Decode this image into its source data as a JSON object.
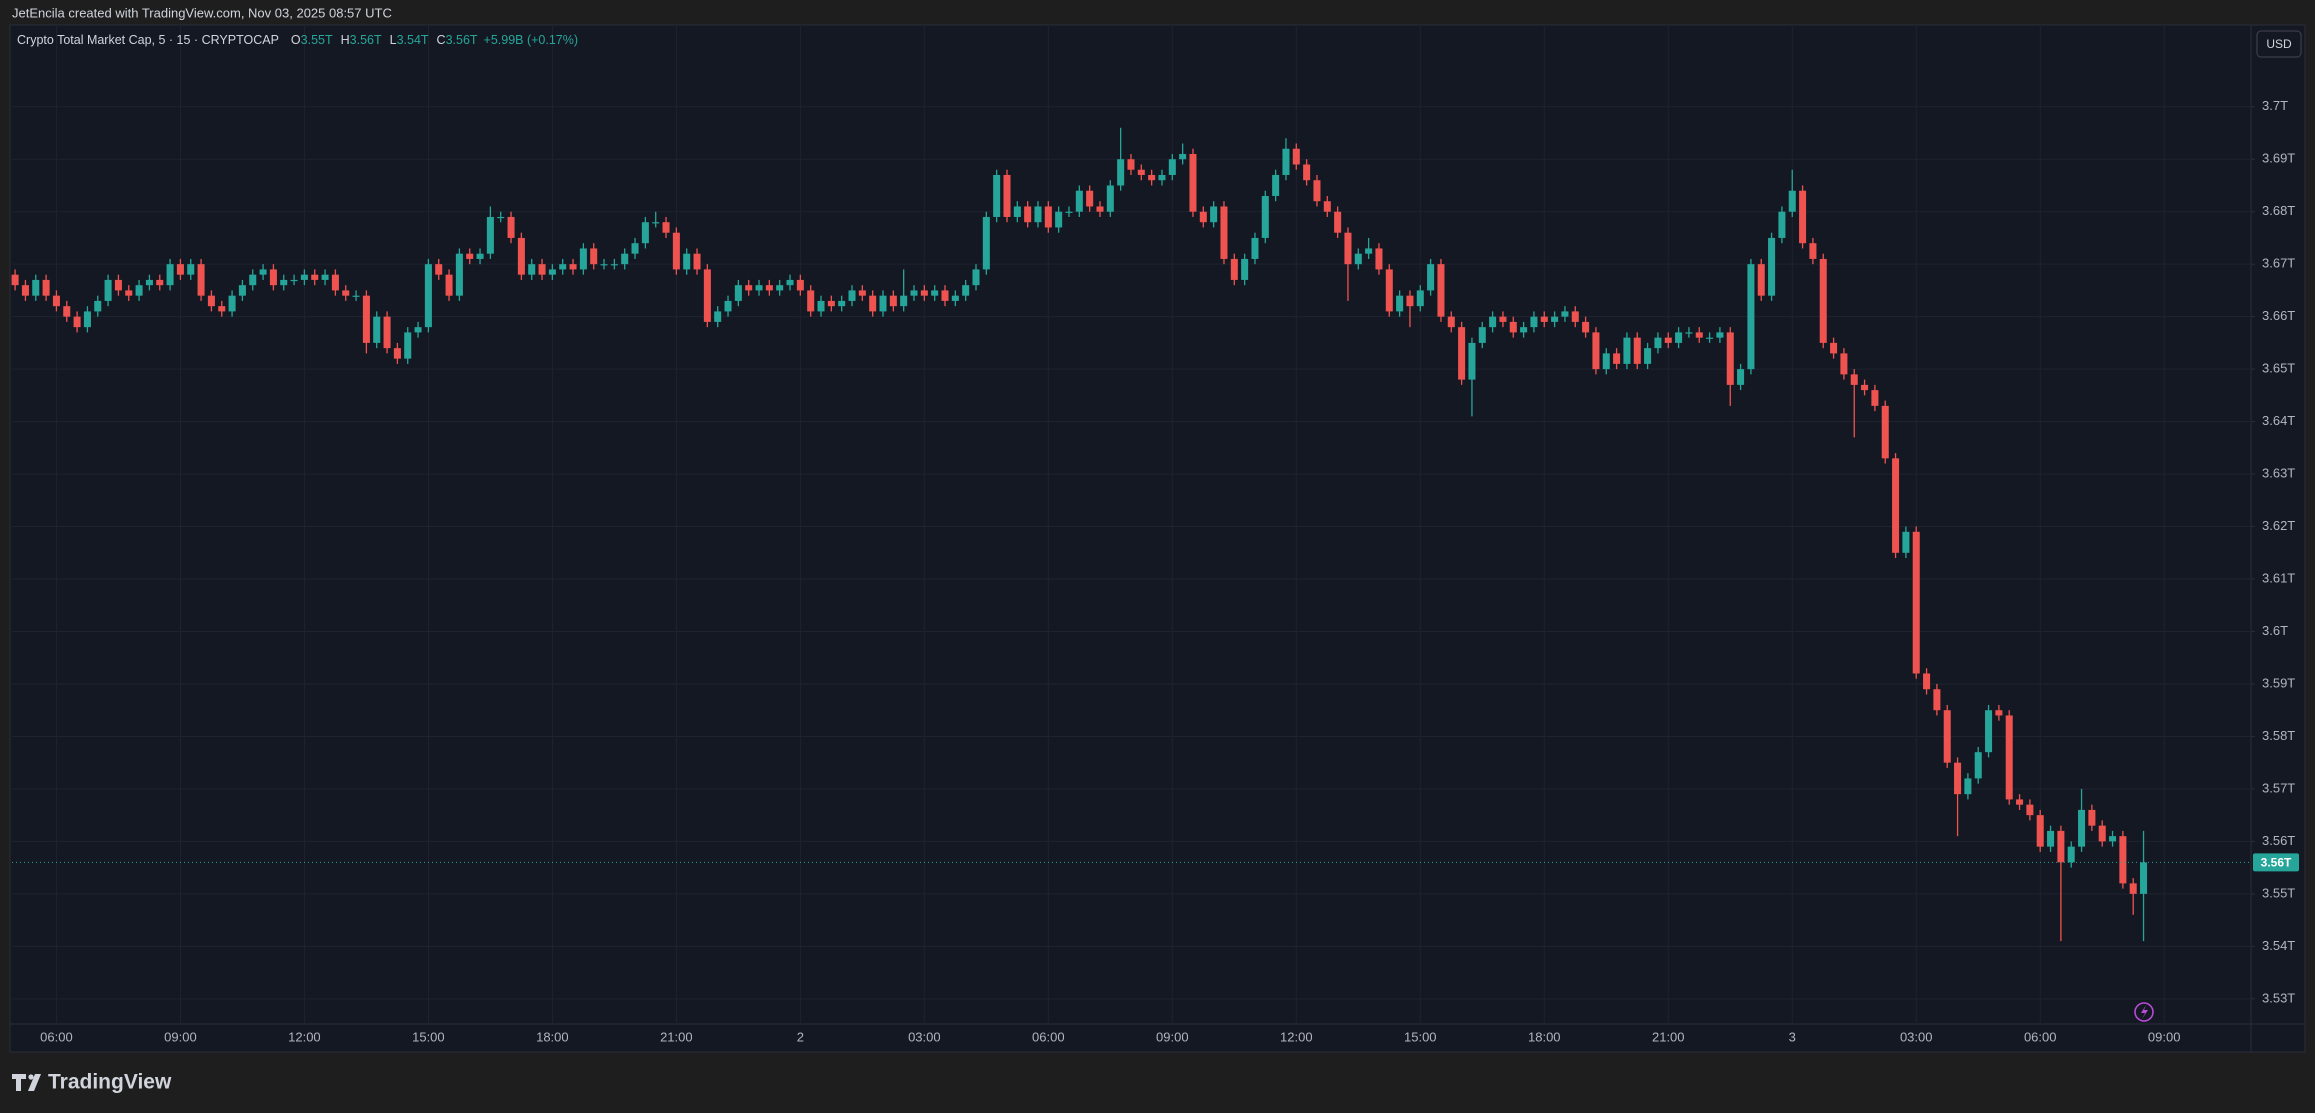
{
  "header": {
    "credit": "JetEncila created with TradingView.com, Nov 03, 2025 08:57 UTC"
  },
  "footer": {
    "brand": "TradingView"
  },
  "chart_data": {
    "type": "candlestick",
    "legend": {
      "name": "Crypto Total Market Cap, 5 · 15 · CRYPTOCAP",
      "items": [
        {
          "key": "O",
          "value": "3.55T"
        },
        {
          "key": "H",
          "value": "3.56T"
        },
        {
          "key": "L",
          "value": "3.54T"
        },
        {
          "key": "C",
          "value": "3.56T"
        }
      ],
      "change": "+5.99B (+0.17%)"
    },
    "currency": "USD",
    "up_color": "#26a69a",
    "down_color": "#ef5350",
    "grid": true,
    "xlim": [
      -0.3,
      216.4
    ],
    "ylim": [
      3.5252,
      3.7152
    ],
    "yticks": [
      {
        "value": 3.53,
        "label": "3.53T"
      },
      {
        "value": 3.54,
        "label": "3.54T"
      },
      {
        "value": 3.55,
        "label": "3.55T"
      },
      {
        "value": 3.56,
        "label": "3.56T"
      },
      {
        "value": 3.57,
        "label": "3.57T"
      },
      {
        "value": 3.58,
        "label": "3.58T"
      },
      {
        "value": 3.59,
        "label": "3.59T"
      },
      {
        "value": 3.6,
        "label": "3.6T"
      },
      {
        "value": 3.61,
        "label": "3.61T"
      },
      {
        "value": 3.62,
        "label": "3.62T"
      },
      {
        "value": 3.63,
        "label": "3.63T"
      },
      {
        "value": 3.64,
        "label": "3.64T"
      },
      {
        "value": 3.65,
        "label": "3.65T"
      },
      {
        "value": 3.66,
        "label": "3.66T"
      },
      {
        "value": 3.67,
        "label": "3.67T"
      },
      {
        "value": 3.68,
        "label": "3.68T"
      },
      {
        "value": 3.69,
        "label": "3.69T"
      },
      {
        "value": 3.7,
        "label": "3.7T"
      }
    ],
    "xticks": [
      {
        "value": 4,
        "label": "06:00"
      },
      {
        "value": 16,
        "label": "09:00"
      },
      {
        "value": 28,
        "label": "12:00"
      },
      {
        "value": 40,
        "label": "15:00"
      },
      {
        "value": 52,
        "label": "18:00"
      },
      {
        "value": 64,
        "label": "21:00"
      },
      {
        "value": 76,
        "label": "2"
      },
      {
        "value": 88,
        "label": "03:00"
      },
      {
        "value": 100,
        "label": "06:00"
      },
      {
        "value": 112,
        "label": "09:00"
      },
      {
        "value": 124,
        "label": "12:00"
      },
      {
        "value": 136,
        "label": "15:00"
      },
      {
        "value": 148,
        "label": "18:00"
      },
      {
        "value": 160,
        "label": "21:00"
      },
      {
        "value": 172,
        "label": "3"
      },
      {
        "value": 184,
        "label": "03:00"
      },
      {
        "value": 196,
        "label": "06:00"
      },
      {
        "value": 208,
        "label": "09:00"
      }
    ],
    "last_price": {
      "value": 3.556,
      "label": "3.56T"
    },
    "ohlc": [
      [
        3.668,
        3.669,
        3.665,
        3.666
      ],
      [
        3.666,
        3.667,
        3.663,
        3.664
      ],
      [
        3.664,
        3.668,
        3.663,
        3.667
      ],
      [
        3.667,
        3.668,
        3.663,
        3.664
      ],
      [
        3.664,
        3.665,
        3.661,
        3.662
      ],
      [
        3.662,
        3.663,
        3.659,
        3.66
      ],
      [
        3.66,
        3.661,
        3.657,
        3.658
      ],
      [
        3.658,
        3.662,
        3.657,
        3.661
      ],
      [
        3.661,
        3.664,
        3.66,
        3.663
      ],
      [
        3.663,
        3.668,
        3.662,
        3.667
      ],
      [
        3.667,
        3.668,
        3.664,
        3.665
      ],
      [
        3.665,
        3.666,
        3.663,
        3.664
      ],
      [
        3.664,
        3.667,
        3.663,
        3.666
      ],
      [
        3.666,
        3.668,
        3.665,
        3.667
      ],
      [
        3.667,
        3.668,
        3.665,
        3.666
      ],
      [
        3.666,
        3.671,
        3.665,
        3.67
      ],
      [
        3.67,
        3.671,
        3.667,
        3.668
      ],
      [
        3.668,
        3.671,
        3.667,
        3.67
      ],
      [
        3.67,
        3.671,
        3.663,
        3.664
      ],
      [
        3.664,
        3.665,
        3.661,
        3.662
      ],
      [
        3.662,
        3.663,
        3.66,
        3.661
      ],
      [
        3.661,
        3.665,
        3.66,
        3.664
      ],
      [
        3.664,
        3.667,
        3.663,
        3.666
      ],
      [
        3.666,
        3.669,
        3.665,
        3.668
      ],
      [
        3.668,
        3.67,
        3.667,
        3.669
      ],
      [
        3.669,
        3.67,
        3.665,
        3.666
      ],
      [
        3.666,
        3.668,
        3.665,
        3.667
      ],
      [
        3.667,
        3.668,
        3.666,
        3.667
      ],
      [
        3.667,
        3.669,
        3.666,
        3.668
      ],
      [
        3.668,
        3.669,
        3.666,
        3.667
      ],
      [
        3.667,
        3.669,
        3.666,
        3.668
      ],
      [
        3.668,
        3.669,
        3.664,
        3.665
      ],
      [
        3.665,
        3.666,
        3.663,
        3.664
      ],
      [
        3.664,
        3.665,
        3.663,
        3.664
      ],
      [
        3.664,
        3.665,
        3.653,
        3.655
      ],
      [
        3.655,
        3.661,
        3.654,
        3.66
      ],
      [
        3.66,
        3.661,
        3.653,
        3.654
      ],
      [
        3.654,
        3.655,
        3.651,
        3.652
      ],
      [
        3.652,
        3.658,
        3.651,
        3.657
      ],
      [
        3.657,
        3.659,
        3.656,
        3.658
      ],
      [
        3.658,
        3.671,
        3.657,
        3.67
      ],
      [
        3.67,
        3.671,
        3.667,
        3.668
      ],
      [
        3.668,
        3.669,
        3.663,
        3.664
      ],
      [
        3.664,
        3.673,
        3.663,
        3.672
      ],
      [
        3.672,
        3.673,
        3.67,
        3.671
      ],
      [
        3.671,
        3.673,
        3.67,
        3.672
      ],
      [
        3.672,
        3.681,
        3.671,
        3.679
      ],
      [
        3.679,
        3.68,
        3.678,
        3.679
      ],
      [
        3.679,
        3.68,
        3.674,
        3.675
      ],
      [
        3.675,
        3.676,
        3.667,
        3.668
      ],
      [
        3.668,
        3.671,
        3.667,
        3.67
      ],
      [
        3.67,
        3.671,
        3.667,
        3.668
      ],
      [
        3.668,
        3.67,
        3.667,
        3.669
      ],
      [
        3.669,
        3.671,
        3.668,
        3.67
      ],
      [
        3.67,
        3.671,
        3.668,
        3.669
      ],
      [
        3.669,
        3.674,
        3.668,
        3.673
      ],
      [
        3.673,
        3.674,
        3.669,
        3.67
      ],
      [
        3.67,
        3.671,
        3.669,
        3.67
      ],
      [
        3.67,
        3.671,
        3.669,
        3.67
      ],
      [
        3.67,
        3.673,
        3.669,
        3.672
      ],
      [
        3.672,
        3.675,
        3.671,
        3.674
      ],
      [
        3.674,
        3.679,
        3.673,
        3.678
      ],
      [
        3.678,
        3.68,
        3.677,
        3.678
      ],
      [
        3.678,
        3.679,
        3.675,
        3.676
      ],
      [
        3.676,
        3.677,
        3.668,
        3.669
      ],
      [
        3.669,
        3.673,
        3.668,
        3.672
      ],
      [
        3.672,
        3.673,
        3.668,
        3.669
      ],
      [
        3.669,
        3.67,
        3.658,
        3.659
      ],
      [
        3.659,
        3.662,
        3.658,
        3.661
      ],
      [
        3.661,
        3.664,
        3.66,
        3.663
      ],
      [
        3.663,
        3.667,
        3.662,
        3.666
      ],
      [
        3.666,
        3.667,
        3.664,
        3.665
      ],
      [
        3.665,
        3.667,
        3.664,
        3.666
      ],
      [
        3.666,
        3.667,
        3.664,
        3.665
      ],
      [
        3.665,
        3.667,
        3.664,
        3.666
      ],
      [
        3.666,
        3.668,
        3.665,
        3.667
      ],
      [
        3.667,
        3.668,
        3.664,
        3.665
      ],
      [
        3.665,
        3.666,
        3.66,
        3.661
      ],
      [
        3.661,
        3.664,
        3.66,
        3.663
      ],
      [
        3.663,
        3.664,
        3.661,
        3.662
      ],
      [
        3.662,
        3.664,
        3.661,
        3.663
      ],
      [
        3.663,
        3.666,
        3.662,
        3.665
      ],
      [
        3.665,
        3.666,
        3.663,
        3.664
      ],
      [
        3.664,
        3.665,
        3.66,
        3.661
      ],
      [
        3.661,
        3.665,
        3.66,
        3.664
      ],
      [
        3.664,
        3.665,
        3.661,
        3.662
      ],
      [
        3.662,
        3.669,
        3.661,
        3.664
      ],
      [
        3.664,
        3.666,
        3.663,
        3.665
      ],
      [
        3.665,
        3.666,
        3.663,
        3.664
      ],
      [
        3.664,
        3.666,
        3.663,
        3.665
      ],
      [
        3.665,
        3.666,
        3.662,
        3.663
      ],
      [
        3.663,
        3.665,
        3.662,
        3.664
      ],
      [
        3.664,
        3.667,
        3.663,
        3.666
      ],
      [
        3.666,
        3.67,
        3.665,
        3.669
      ],
      [
        3.669,
        3.68,
        3.668,
        3.679
      ],
      [
        3.679,
        3.688,
        3.678,
        3.687
      ],
      [
        3.687,
        3.688,
        3.678,
        3.679
      ],
      [
        3.679,
        3.682,
        3.678,
        3.681
      ],
      [
        3.681,
        3.682,
        3.677,
        3.678
      ],
      [
        3.678,
        3.682,
        3.677,
        3.681
      ],
      [
        3.681,
        3.682,
        3.676,
        3.677
      ],
      [
        3.677,
        3.681,
        3.676,
        3.68
      ],
      [
        3.68,
        3.681,
        3.679,
        3.68
      ],
      [
        3.68,
        3.685,
        3.679,
        3.684
      ],
      [
        3.684,
        3.685,
        3.68,
        3.681
      ],
      [
        3.681,
        3.682,
        3.679,
        3.68
      ],
      [
        3.68,
        3.686,
        3.679,
        3.685
      ],
      [
        3.685,
        3.696,
        3.684,
        3.69
      ],
      [
        3.69,
        3.691,
        3.687,
        3.688
      ],
      [
        3.688,
        3.689,
        3.686,
        3.687
      ],
      [
        3.687,
        3.688,
        3.685,
        3.686
      ],
      [
        3.686,
        3.688,
        3.685,
        3.687
      ],
      [
        3.687,
        3.691,
        3.686,
        3.69
      ],
      [
        3.69,
        3.693,
        3.689,
        3.691
      ],
      [
        3.691,
        3.692,
        3.679,
        3.68
      ],
      [
        3.68,
        3.681,
        3.677,
        3.678
      ],
      [
        3.678,
        3.682,
        3.677,
        3.681
      ],
      [
        3.681,
        3.682,
        3.67,
        3.671
      ],
      [
        3.671,
        3.672,
        3.666,
        3.667
      ],
      [
        3.667,
        3.672,
        3.666,
        3.671
      ],
      [
        3.671,
        3.676,
        3.67,
        3.675
      ],
      [
        3.675,
        3.684,
        3.674,
        3.683
      ],
      [
        3.683,
        3.688,
        3.682,
        3.687
      ],
      [
        3.687,
        3.694,
        3.686,
        3.692
      ],
      [
        3.692,
        3.693,
        3.688,
        3.689
      ],
      [
        3.689,
        3.69,
        3.685,
        3.686
      ],
      [
        3.686,
        3.687,
        3.681,
        3.682
      ],
      [
        3.682,
        3.683,
        3.679,
        3.68
      ],
      [
        3.68,
        3.681,
        3.675,
        3.676
      ],
      [
        3.676,
        3.677,
        3.663,
        3.67
      ],
      [
        3.67,
        3.673,
        3.669,
        3.672
      ],
      [
        3.672,
        3.675,
        3.671,
        3.673
      ],
      [
        3.673,
        3.674,
        3.668,
        3.669
      ],
      [
        3.669,
        3.67,
        3.66,
        3.661
      ],
      [
        3.661,
        3.665,
        3.66,
        3.664
      ],
      [
        3.664,
        3.665,
        3.658,
        3.662
      ],
      [
        3.662,
        3.666,
        3.661,
        3.665
      ],
      [
        3.665,
        3.671,
        3.664,
        3.67
      ],
      [
        3.67,
        3.671,
        3.659,
        3.66
      ],
      [
        3.66,
        3.661,
        3.657,
        3.658
      ],
      [
        3.658,
        3.659,
        3.647,
        3.648
      ],
      [
        3.648,
        3.656,
        3.641,
        3.655
      ],
      [
        3.655,
        3.659,
        3.654,
        3.658
      ],
      [
        3.658,
        3.661,
        3.657,
        3.66
      ],
      [
        3.66,
        3.661,
        3.658,
        3.659
      ],
      [
        3.659,
        3.66,
        3.656,
        3.657
      ],
      [
        3.657,
        3.659,
        3.656,
        3.658
      ],
      [
        3.658,
        3.661,
        3.657,
        3.66
      ],
      [
        3.66,
        3.661,
        3.658,
        3.659
      ],
      [
        3.659,
        3.661,
        3.658,
        3.66
      ],
      [
        3.66,
        3.662,
        3.659,
        3.661
      ],
      [
        3.661,
        3.662,
        3.658,
        3.659
      ],
      [
        3.659,
        3.66,
        3.656,
        3.657
      ],
      [
        3.657,
        3.658,
        3.649,
        3.65
      ],
      [
        3.65,
        3.654,
        3.649,
        3.653
      ],
      [
        3.653,
        3.654,
        3.65,
        3.651
      ],
      [
        3.651,
        3.657,
        3.65,
        3.656
      ],
      [
        3.656,
        3.657,
        3.65,
        3.651
      ],
      [
        3.651,
        3.655,
        3.65,
        3.654
      ],
      [
        3.654,
        3.657,
        3.653,
        3.656
      ],
      [
        3.656,
        3.657,
        3.654,
        3.655
      ],
      [
        3.655,
        3.658,
        3.654,
        3.657
      ],
      [
        3.657,
        3.658,
        3.656,
        3.657
      ],
      [
        3.657,
        3.658,
        3.655,
        3.656
      ],
      [
        3.656,
        3.657,
        3.655,
        3.656
      ],
      [
        3.656,
        3.658,
        3.655,
        3.657
      ],
      [
        3.657,
        3.658,
        3.643,
        3.647
      ],
      [
        3.647,
        3.651,
        3.646,
        3.65
      ],
      [
        3.65,
        3.671,
        3.649,
        3.67
      ],
      [
        3.67,
        3.671,
        3.663,
        3.664
      ],
      [
        3.664,
        3.676,
        3.663,
        3.675
      ],
      [
        3.675,
        3.681,
        3.674,
        3.68
      ],
      [
        3.68,
        3.688,
        3.679,
        3.684
      ],
      [
        3.684,
        3.685,
        3.673,
        3.674
      ],
      [
        3.674,
        3.675,
        3.67,
        3.671
      ],
      [
        3.671,
        3.672,
        3.654,
        3.655
      ],
      [
        3.655,
        3.656,
        3.652,
        3.653
      ],
      [
        3.653,
        3.654,
        3.648,
        3.649
      ],
      [
        3.649,
        3.65,
        3.637,
        3.647
      ],
      [
        3.647,
        3.648,
        3.645,
        3.646
      ],
      [
        3.646,
        3.647,
        3.642,
        3.643
      ],
      [
        3.643,
        3.644,
        3.632,
        3.633
      ],
      [
        3.633,
        3.634,
        3.614,
        3.615
      ],
      [
        3.615,
        3.62,
        3.614,
        3.619
      ],
      [
        3.619,
        3.62,
        3.591,
        3.592
      ],
      [
        3.592,
        3.593,
        3.588,
        3.589
      ],
      [
        3.589,
        3.59,
        3.584,
        3.585
      ],
      [
        3.585,
        3.586,
        3.574,
        3.575
      ],
      [
        3.575,
        3.576,
        3.561,
        3.569
      ],
      [
        3.569,
        3.573,
        3.568,
        3.572
      ],
      [
        3.572,
        3.578,
        3.571,
        3.577
      ],
      [
        3.577,
        3.586,
        3.576,
        3.585
      ],
      [
        3.585,
        3.586,
        3.583,
        3.584
      ],
      [
        3.584,
        3.585,
        3.567,
        3.568
      ],
      [
        3.568,
        3.569,
        3.566,
        3.567
      ],
      [
        3.567,
        3.568,
        3.564,
        3.565
      ],
      [
        3.565,
        3.566,
        3.558,
        3.559
      ],
      [
        3.559,
        3.563,
        3.558,
        3.562
      ],
      [
        3.562,
        3.563,
        3.541,
        3.556
      ],
      [
        3.556,
        3.56,
        3.555,
        3.559
      ],
      [
        3.559,
        3.57,
        3.558,
        3.566
      ],
      [
        3.566,
        3.567,
        3.562,
        3.563
      ],
      [
        3.563,
        3.564,
        3.559,
        3.56
      ],
      [
        3.56,
        3.562,
        3.559,
        3.561
      ],
      [
        3.561,
        3.562,
        3.551,
        3.552
      ],
      [
        3.552,
        3.553,
        3.546,
        3.55
      ],
      [
        3.55,
        3.562,
        3.541,
        3.556
      ]
    ]
  }
}
